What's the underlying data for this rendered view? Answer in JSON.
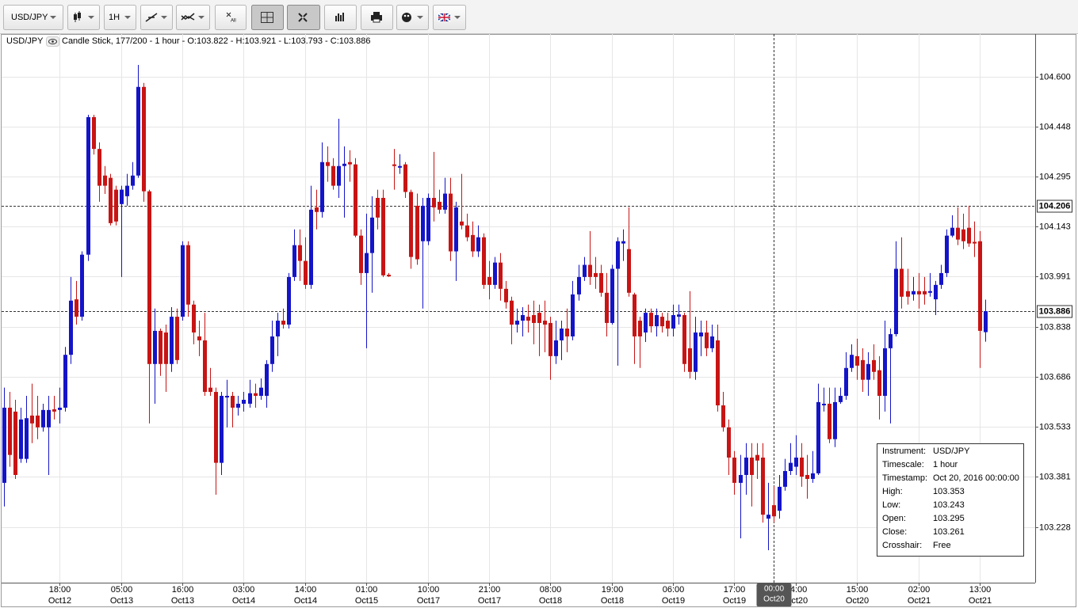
{
  "toolbar": {
    "symbol": "USD/JPY",
    "timeframe": "1H",
    "clear_label": "All"
  },
  "chart_data": {
    "type": "candlestick",
    "title": "USD/JPY",
    "info": "Candle Stick, 177/200 - 1 hour - O:103.822 - H:103.921 - L:103.793 - C:103.886",
    "up_color": "#1414c8",
    "down_color": "#c81414",
    "grid": true,
    "ylim": [
      103.059,
      104.73
    ],
    "yticks": [
      {
        "value": 104.6,
        "label": "104.600"
      },
      104.448,
      104.295,
      104.143,
      103.991,
      103.838,
      103.686,
      103.533,
      103.381,
      103.228
    ],
    "xticks": [
      {
        "value": 10,
        "label": [
          "18:00",
          "Oct12"
        ]
      },
      {
        "value": 21,
        "label": [
          "05:00",
          "Oct13"
        ]
      },
      {
        "value": 32,
        "label": [
          "16:00",
          "Oct13"
        ]
      },
      {
        "value": 43,
        "label": [
          "03:00",
          "Oct14"
        ]
      },
      {
        "value": 54,
        "label": [
          "14:00",
          "Oct14"
        ]
      },
      {
        "value": 65,
        "label": [
          "01:00",
          "Oct15"
        ]
      },
      {
        "value": 76,
        "label": [
          "10:00",
          "Oct17"
        ]
      },
      {
        "value": 87,
        "label": [
          "21:00",
          "Oct17"
        ]
      },
      {
        "value": 98,
        "label": [
          "08:00",
          "Oct18"
        ]
      },
      {
        "value": 109,
        "label": [
          "19:00",
          "Oct18"
        ]
      },
      {
        "value": 120,
        "label": [
          "06:00",
          "Oct19"
        ]
      },
      {
        "value": 131,
        "label": [
          "17:00",
          "Oct19"
        ]
      },
      {
        "value": 142,
        "label": [
          "04:00",
          "Oct20"
        ]
      },
      {
        "value": 153,
        "label": [
          "15:00",
          "Oct20"
        ]
      },
      {
        "value": 164,
        "label": [
          "02:00",
          "Oct21"
        ]
      },
      {
        "value": 175,
        "label": [
          "13:00",
          "Oct21"
        ]
      }
    ],
    "open": [
      103.363,
      103.592,
      103.58,
      103.436,
      103.436,
      103.568,
      103.568,
      103.532,
      103.532,
      103.587,
      103.585,
      103.592,
      103.753,
      103.922,
      103.869,
      104.058,
      104.477,
      104.38,
      104.299,
      104.292,
      104.256,
      104.212,
      104.236,
      104.268,
      104.299,
      104.569,
      104.251,
      103.725,
      103.826,
      103.821,
      103.725,
      103.869,
      103.869,
      104.087,
      103.906,
      103.809,
      103.797,
      103.653,
      103.64,
      103.424,
      103.623,
      103.628,
      103.592,
      103.604,
      103.604,
      103.636,
      103.628,
      103.628,
      103.725,
      103.809,
      103.857,
      103.845,
      103.99,
      104.087,
      104.039,
      103.966,
      104.202,
      104.188,
      104.34,
      104.328,
      104.268,
      104.328,
      104.34,
      104.333,
      104.116,
      104.002,
      104.063,
      104.231,
      104.231,
      103.997,
      104.333,
      104.323,
      104.333,
      104.249,
      104.207,
      104.099,
      104.099,
      104.231,
      104.219,
      104.195,
      104.244,
      104.068,
      104.159,
      104.147,
      104.118,
      104.068,
      104.111,
      103.99,
      103.966,
      104.034,
      103.954,
      103.918,
      103.845,
      103.857,
      103.869,
      103.874,
      103.881,
      103.857,
      103.85,
      103.749,
      103.797,
      103.833,
      103.809,
      103.937,
      103.99,
      104.027,
      104.002,
      104.002,
      103.942,
      103.85,
      104.015,
      104.092,
      104.075,
      103.937,
      103.857,
      103.821,
      103.881,
      103.84,
      103.869,
      103.857,
      103.833,
      103.869,
      103.874,
      103.773,
      103.701,
      103.809,
      103.821,
      103.773,
      103.797,
      103.599,
      103.532,
      103.44,
      103.363,
      103.387,
      103.44,
      103.448,
      103.44,
      103.254,
      103.295,
      103.278,
      103.351,
      103.399,
      103.412,
      103.44,
      103.387,
      103.375,
      103.392,
      103.599,
      103.604,
      103.496,
      103.609,
      103.628,
      103.713,
      103.749,
      103.737,
      103.677,
      103.737,
      103.706,
      103.628,
      103.773,
      103.816,
      104.015,
      103.947,
      103.937,
      103.947,
      103.947,
      103.942,
      103.922,
      103.966,
      104.002,
      104.116,
      104.14,
      104.135,
      104.14,
      104.097,
      104.099,
      103.822
    ],
    "high": [
      103.653,
      103.64,
      103.616,
      103.592,
      103.628,
      103.665,
      103.628,
      103.604,
      103.628,
      103.628,
      103.653,
      103.777,
      103.99,
      103.978,
      104.068,
      104.484,
      104.484,
      104.4,
      104.328,
      104.304,
      104.268,
      104.268,
      104.304,
      104.34,
      104.636,
      104.581,
      104.256,
      103.894,
      103.833,
      103.845,
      103.898,
      103.894,
      104.099,
      104.099,
      103.918,
      103.857,
      103.881,
      103.713,
      103.653,
      103.64,
      103.677,
      103.64,
      103.628,
      103.64,
      103.677,
      103.665,
      103.681,
      103.737,
      103.857,
      103.881,
      103.894,
      104.002,
      104.135,
      104.135,
      104.111,
      104.268,
      104.256,
      104.4,
      104.388,
      104.352,
      104.472,
      104.388,
      104.376,
      104.352,
      104.135,
      104.183,
      104.236,
      104.256,
      104.256,
      104.002,
      104.38,
      104.364,
      104.34,
      104.256,
      104.244,
      104.231,
      104.244,
      104.371,
      104.256,
      104.292,
      104.292,
      104.219,
      104.304,
      104.183,
      104.159,
      104.147,
      104.123,
      104.039,
      104.051,
      104.063,
      103.978,
      103.93,
      103.894,
      103.898,
      103.906,
      103.918,
      103.906,
      103.918,
      103.869,
      103.857,
      103.857,
      103.894,
      103.978,
      104.027,
      104.051,
      104.13,
      104.051,
      104.027,
      104.002,
      104.027,
      104.111,
      104.135,
      104.202,
      103.942,
      103.869,
      103.894,
      103.894,
      103.894,
      103.881,
      103.881,
      103.906,
      103.906,
      103.881,
      103.947,
      103.869,
      103.857,
      103.857,
      103.845,
      103.845,
      103.64,
      103.556,
      103.46,
      103.448,
      103.484,
      103.484,
      103.484,
      103.484,
      103.363,
      103.353,
      103.387,
      103.436,
      103.484,
      103.508,
      103.484,
      103.448,
      103.46,
      103.665,
      103.653,
      103.653,
      103.653,
      103.653,
      103.761,
      103.785,
      103.802,
      103.773,
      103.761,
      103.785,
      103.749,
      103.857,
      103.833,
      104.099,
      104.111,
      104.015,
      103.99,
      104.002,
      103.99,
      104.002,
      103.978,
      104.027,
      104.135,
      104.178,
      104.202,
      104.183,
      104.207,
      104.159,
      104.13,
      103.921
    ],
    "low": [
      103.291,
      103.412,
      103.375,
      103.424,
      103.424,
      103.484,
      103.496,
      103.519,
      103.387,
      103.556,
      103.544,
      103.58,
      103.725,
      103.845,
      103.857,
      104.039,
      104.363,
      104.219,
      104.243,
      104.147,
      104.147,
      103.99,
      104.207,
      104.256,
      104.292,
      104.219,
      103.544,
      103.604,
      103.689,
      103.64,
      103.701,
      103.725,
      103.857,
      103.869,
      103.785,
      103.749,
      103.628,
      103.628,
      103.327,
      103.387,
      103.532,
      103.532,
      103.568,
      103.58,
      103.592,
      103.592,
      103.616,
      103.592,
      103.701,
      103.749,
      103.833,
      103.833,
      103.978,
      103.978,
      103.954,
      103.954,
      104.135,
      104.171,
      104.28,
      104.256,
      104.231,
      104.171,
      104.28,
      104.111,
      103.966,
      103.773,
      103.942,
      104.135,
      103.99,
      103.99,
      104.256,
      104.304,
      104.231,
      104.015,
      104.027,
      103.894,
      104.087,
      104.159,
      104.183,
      104.183,
      104.039,
      103.978,
      104.135,
      104.099,
      104.051,
      104.051,
      103.954,
      103.922,
      103.954,
      103.918,
      103.894,
      103.785,
      103.821,
      103.809,
      103.821,
      103.785,
      103.749,
      103.761,
      103.677,
      103.725,
      103.737,
      103.761,
      103.797,
      103.918,
      103.978,
      103.966,
      103.954,
      103.93,
      103.809,
      103.845,
      103.72,
      104.039,
      103.93,
      103.725,
      103.713,
      103.792,
      103.821,
      103.809,
      103.821,
      103.809,
      103.809,
      103.845,
      103.701,
      103.681,
      103.677,
      103.749,
      103.749,
      103.761,
      103.58,
      103.519,
      103.387,
      103.327,
      103.194,
      103.327,
      103.291,
      103.375,
      103.242,
      103.158,
      103.243,
      103.254,
      103.339,
      103.387,
      103.387,
      103.351,
      103.315,
      103.363,
      103.387,
      103.58,
      103.484,
      103.472,
      103.604,
      103.616,
      103.701,
      103.677,
      103.64,
      103.628,
      103.677,
      103.556,
      103.58,
      103.544,
      103.809,
      103.894,
      103.906,
      103.918,
      103.894,
      103.906,
      103.93,
      103.874,
      103.954,
      103.99,
      104.111,
      104.087,
      104.075,
      104.082,
      104.051,
      103.713,
      103.793
    ],
    "close": [
      103.592,
      103.448,
      103.387,
      103.556,
      103.56,
      103.544,
      103.532,
      103.585,
      103.585,
      103.58,
      103.592,
      103.753,
      103.918,
      103.869,
      104.058,
      104.477,
      104.38,
      104.268,
      104.268,
      104.154,
      104.159,
      104.256,
      104.268,
      104.299,
      104.569,
      104.251,
      103.725,
      103.826,
      103.725,
      103.725,
      103.869,
      103.737,
      104.087,
      103.906,
      103.821,
      103.797,
      103.64,
      103.64,
      103.424,
      103.628,
      103.628,
      103.592,
      103.604,
      103.616,
      103.636,
      103.628,
      103.653,
      103.725,
      103.809,
      103.857,
      103.845,
      103.99,
      104.087,
      104.039,
      103.966,
      104.195,
      104.188,
      104.34,
      104.328,
      104.268,
      104.328,
      104.335,
      104.333,
      104.116,
      104.002,
      104.063,
      104.171,
      104.171,
      103.995,
      103.992,
      104.328,
      104.328,
      104.249,
      104.051,
      104.044,
      104.207,
      104.231,
      104.202,
      104.195,
      104.244,
      104.068,
      104.202,
      104.147,
      104.111,
      104.068,
      104.111,
      103.966,
      103.966,
      104.034,
      103.954,
      103.913,
      103.845,
      103.857,
      103.874,
      103.857,
      103.85,
      103.85,
      103.845,
      103.749,
      103.797,
      103.833,
      103.809,
      103.937,
      103.99,
      104.027,
      103.99,
      103.99,
      103.942,
      103.85,
      104.015,
      104.099,
      104.099,
      103.942,
      103.809,
      103.809,
      103.881,
      103.84,
      103.874,
      103.84,
      103.833,
      103.874,
      103.876,
      103.725,
      103.701,
      103.821,
      103.821,
      103.773,
      103.809,
      103.599,
      103.532,
      103.44,
      103.363,
      103.387,
      103.44,
      103.387,
      103.431,
      103.266,
      103.266,
      103.261,
      103.351,
      103.399,
      103.424,
      103.44,
      103.382,
      103.375,
      103.392,
      103.609,
      103.604,
      103.496,
      103.609,
      103.628,
      103.713,
      103.753,
      103.72,
      103.677,
      103.725,
      103.701,
      103.628,
      103.773,
      103.816,
      104.015,
      103.93,
      103.93,
      103.947,
      103.937,
      103.937,
      103.947,
      103.966,
      104.002,
      104.116,
      104.14,
      104.104,
      104.099,
      104.092,
      104.092,
      103.826,
      103.886
    ],
    "price_lines": [
      104.206,
      103.886
    ],
    "crosshair": {
      "index": 138,
      "label": [
        "00:00",
        "Oct20"
      ]
    },
    "tooltip": [
      [
        "Instrument:",
        "USD/JPY"
      ],
      [
        "Timescale:",
        "1 hour"
      ],
      [
        "Timestamp:",
        "Oct 20, 2016 00:00:00"
      ],
      [
        "High:",
        "103.353"
      ],
      [
        "Low:",
        "103.243"
      ],
      [
        "Open:",
        "103.295"
      ],
      [
        "Close:",
        "103.261"
      ],
      [
        "Crosshair:",
        "Free"
      ]
    ]
  }
}
